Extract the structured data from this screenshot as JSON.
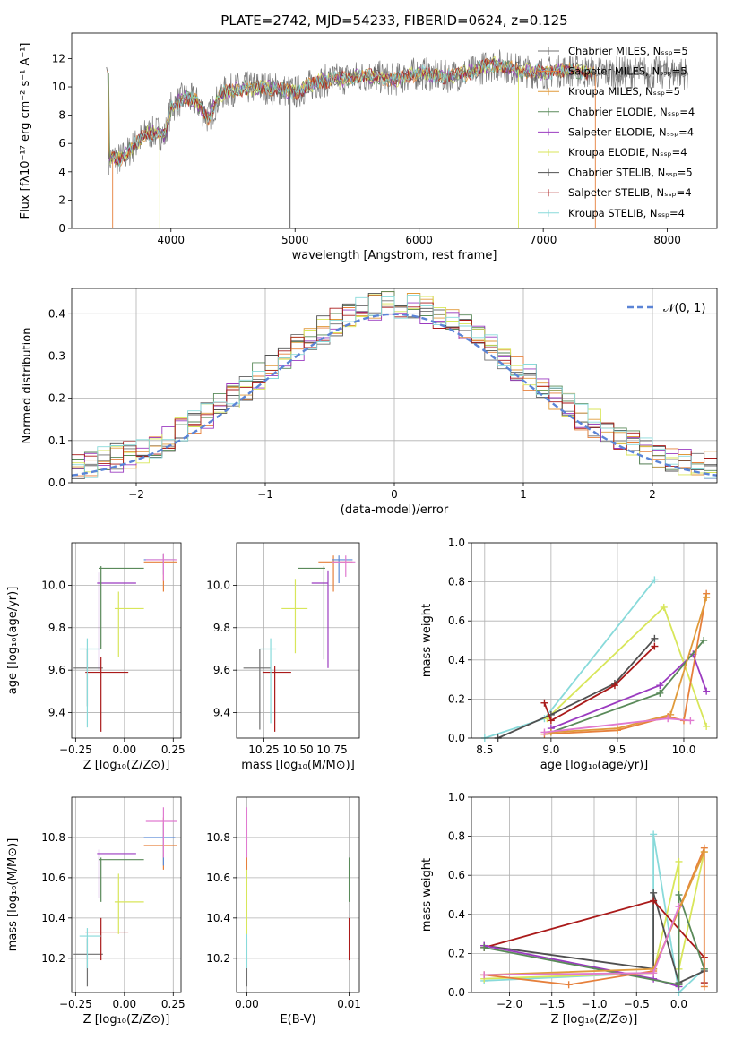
{
  "colors": {
    "c1": "#6f6f6f",
    "c2": "#e6803c",
    "c3": "#e09a3a",
    "c4": "#5a8a5a",
    "c5": "#9b3bc0",
    "c6": "#d8e65a",
    "c7": "#505050",
    "c8": "#aa1a1a",
    "c9": "#88dada",
    "norm": "#5b84d6",
    "pink": "#e07ad0",
    "blue2": "#5b8ad6"
  },
  "chart_data": [
    {
      "type": "line",
      "title": "PLATE=2742, MJD=54233, FIBERID=0624, z=0.125",
      "xlabel": "wavelength [Angstrom, rest frame]",
      "ylabel": "Flux [fλ10⁻¹⁷ erg cm⁻² s⁻¹ A⁻¹]",
      "xlim": [
        3200,
        8400
      ],
      "ylim": [
        0,
        13.8
      ],
      "xticks": [
        "4000",
        "5000",
        "6000",
        "7000",
        "8000"
      ],
      "yticks": [
        "0",
        "2",
        "4",
        "6",
        "8",
        "10",
        "12"
      ],
      "grid": false,
      "legend_position": "upper-right",
      "legend": [
        "Chabrier MILES, Nₛₛₚ=5",
        "Salpeter MILES, Nₛₛₚ=5",
        "Kroupa MILES, Nₛₛₚ=5",
        "Chabrier ELODIE, Nₛₛₚ=4",
        "Salpeter ELODIE, Nₛₛₚ=4",
        "Kroupa ELODIE, Nₛₛₚ=4",
        "Chabrier STELIB, Nₛₛₚ=5",
        "Salpeter STELIB, Nₛₛₚ=4",
        "Kroupa STELIB, Nₛₛₚ=4"
      ],
      "continuum": [
        [
          3500,
          5.0
        ],
        [
          3600,
          4.9
        ],
        [
          3700,
          5.8
        ],
        [
          3800,
          6.7
        ],
        [
          3900,
          6.8
        ],
        [
          3950,
          6.5
        ],
        [
          4000,
          8.5
        ],
        [
          4100,
          9.2
        ],
        [
          4200,
          9.0
        ],
        [
          4300,
          7.8
        ],
        [
          4400,
          9.5
        ],
        [
          4500,
          9.8
        ],
        [
          4700,
          10.0
        ],
        [
          4900,
          9.8
        ],
        [
          5000,
          9.6
        ],
        [
          5200,
          10.4
        ],
        [
          5400,
          10.6
        ],
        [
          5600,
          10.8
        ],
        [
          5800,
          10.5
        ],
        [
          6000,
          11.0
        ],
        [
          6200,
          10.7
        ],
        [
          6400,
          11.0
        ],
        [
          6600,
          11.6
        ],
        [
          6800,
          11.2
        ],
        [
          7000,
          11.0
        ],
        [
          7200,
          11.2
        ],
        [
          7400,
          11.0
        ]
      ]
    },
    {
      "type": "line",
      "xlabel": "(data-model)/error",
      "ylabel": "Normed distribution",
      "xlim": [
        -2.5,
        2.5
      ],
      "ylim": [
        0,
        0.46
      ],
      "xticks": [
        "−2",
        "−1",
        "0",
        "1",
        "2"
      ],
      "yticks": [
        "0.0",
        "0.1",
        "0.2",
        "0.3",
        "0.4"
      ],
      "grid": true,
      "legend_position": "upper-right",
      "legend": [
        "𝒩(0, 1)"
      ],
      "bin_width": 0.1
    },
    {
      "type": "scatter",
      "xlabel": "Z [log₁₀(Z/Z⊙)]",
      "ylabel": "age  [log₁₀(age/yr)]",
      "xlim": [
        -0.27,
        0.29
      ],
      "ylim": [
        9.28,
        10.2
      ],
      "xticks": [
        "−0.25",
        "0.00",
        "0.25"
      ],
      "yticks": [
        "9.4",
        "9.6",
        "9.8",
        "10.0"
      ],
      "grid": true,
      "points": [
        {
          "c": "c1",
          "x": -0.19,
          "y": 9.61,
          "xe": [
            -0.26,
            -0.11
          ],
          "ye": [
            9.43,
            9.7
          ]
        },
        {
          "c": "c8",
          "x": -0.12,
          "y": 9.59,
          "xe": [
            -0.2,
            0.02
          ],
          "ye": [
            9.31,
            9.66
          ]
        },
        {
          "c": "c9",
          "x": -0.19,
          "y": 9.7,
          "xe": [
            -0.23,
            -0.12
          ],
          "ye": [
            9.33,
            9.75
          ]
        },
        {
          "c": "c6",
          "x": -0.03,
          "y": 9.89,
          "xe": [
            -0.05,
            0.1
          ],
          "ye": [
            9.66,
            9.97
          ]
        },
        {
          "c": "c5",
          "x": -0.13,
          "y": 10.01,
          "xe": [
            -0.14,
            0.06
          ],
          "ye": [
            9.6,
            10.06
          ]
        },
        {
          "c": "c4",
          "x": -0.12,
          "y": 10.08,
          "xe": [
            -0.13,
            0.1
          ],
          "ye": [
            9.7,
            10.09
          ]
        },
        {
          "c": "c2",
          "x": 0.2,
          "y": 10.11,
          "xe": [
            0.1,
            0.27
          ],
          "ye": [
            9.97,
            10.15
          ]
        },
        {
          "c": "blue2",
          "x": 0.2,
          "y": 10.12,
          "xe": [
            0.1,
            0.26
          ],
          "ye": [
            10.05,
            10.15
          ]
        },
        {
          "c": "pink",
          "x": 0.2,
          "y": 10.12,
          "xe": [
            0.11,
            0.27
          ],
          "ye": [
            10.02,
            10.15
          ]
        }
      ]
    },
    {
      "type": "scatter",
      "xlabel": "mass [log₁₀(M/M⊙)]",
      "ylabel": "",
      "xlim": [
        10.05,
        10.95
      ],
      "ylim": [
        9.28,
        10.2
      ],
      "xticks": [
        "10.25",
        "10.50",
        "10.75"
      ],
      "yticks": [
        "9.4",
        "9.6",
        "9.8",
        "10.0"
      ],
      "grid": true,
      "points": [
        {
          "c": "c1",
          "x": 10.22,
          "y": 9.61,
          "xe": [
            10.1,
            10.3
          ],
          "ye": [
            9.32,
            9.7
          ]
        },
        {
          "c": "c8",
          "x": 10.33,
          "y": 9.59,
          "xe": [
            10.24,
            10.45
          ],
          "ye": [
            9.31,
            9.62
          ]
        },
        {
          "c": "c9",
          "x": 10.3,
          "y": 9.7,
          "xe": [
            10.22,
            10.34
          ],
          "ye": [
            9.35,
            9.75
          ]
        },
        {
          "c": "c6",
          "x": 10.48,
          "y": 9.89,
          "xe": [
            10.38,
            10.57
          ],
          "ye": [
            9.68,
            10.03
          ]
        },
        {
          "c": "c5",
          "x": 10.72,
          "y": 10.01,
          "xe": [
            10.6,
            10.72
          ],
          "ye": [
            9.61,
            10.07
          ]
        },
        {
          "c": "c4",
          "x": 10.69,
          "y": 10.08,
          "xe": [
            10.5,
            10.7
          ],
          "ye": [
            9.65,
            10.09
          ]
        },
        {
          "c": "c2",
          "x": 10.76,
          "y": 10.11,
          "xe": [
            10.65,
            10.9
          ],
          "ye": [
            9.97,
            10.14
          ]
        },
        {
          "c": "blue2",
          "x": 10.8,
          "y": 10.12,
          "xe": [
            10.75,
            10.9
          ],
          "ye": [
            10.01,
            10.14
          ]
        },
        {
          "c": "pink",
          "x": 10.85,
          "y": 10.11,
          "xe": [
            10.75,
            10.92
          ],
          "ye": [
            10.04,
            10.14
          ]
        }
      ]
    },
    {
      "type": "line",
      "xlabel": "age  [log₁₀(age/yr)]",
      "ylabel": "mass weight",
      "xlim": [
        8.4,
        10.25
      ],
      "ylim": [
        0,
        1
      ],
      "xticks": [
        "8.5",
        "9.0",
        "9.5",
        "10.0"
      ],
      "yticks": [
        "0.0",
        "0.2",
        "0.4",
        "0.6",
        "0.8",
        "1.0"
      ],
      "grid": true,
      "series": [
        {
          "c": "c9",
          "x": [
            8.5,
            8.95,
            9.78
          ],
          "y": [
            0.0,
            0.1,
            0.81
          ]
        },
        {
          "c": "c6",
          "x": 8.97,
          "y": [
            0.1,
            0.67,
            0.06
          ],
          "xs": [
            8.97,
            9.85,
            10.17
          ]
        },
        {
          "c": "c7",
          "x": [
            8.6,
            9.0,
            9.48,
            9.78
          ],
          "y": [
            0.0,
            0.12,
            0.28,
            0.51
          ]
        },
        {
          "c": "c8",
          "x": [
            8.95,
            9.0,
            9.48,
            9.78
          ],
          "y": [
            0.18,
            0.09,
            0.27,
            0.47
          ]
        },
        {
          "c": "c5",
          "x": [
            9.0,
            9.82,
            10.07,
            10.17
          ],
          "y": [
            0.05,
            0.27,
            0.43,
            0.24
          ]
        },
        {
          "c": "c4",
          "x": [
            9.0,
            9.82,
            10.15
          ],
          "y": [
            0.03,
            0.23,
            0.5
          ]
        },
        {
          "c": "c2",
          "x": [
            8.95,
            9.5,
            9.88,
            10.0,
            10.17
          ],
          "y": [
            0.02,
            0.04,
            0.11,
            0.09,
            0.74
          ]
        },
        {
          "c": "c3",
          "x": [
            9.0,
            9.5,
            9.9,
            10.17
          ],
          "y": [
            0.03,
            0.05,
            0.12,
            0.72
          ]
        },
        {
          "c": "pink",
          "x": [
            8.95,
            9.88,
            10.05
          ],
          "y": [
            0.03,
            0.1,
            0.09
          ]
        }
      ]
    },
    {
      "type": "scatter",
      "xlabel": "Z [log₁₀(Z/Z⊙)]",
      "ylabel": "mass [log₁₀(M/M⊙)]",
      "xlim": [
        -0.27,
        0.29
      ],
      "ylim": [
        10.03,
        11.0
      ],
      "xticks": [
        "−0.25",
        "0.00",
        "0.25"
      ],
      "yticks": [
        "10.2",
        "10.4",
        "10.6",
        "10.8"
      ],
      "grid": true,
      "points": [
        {
          "c": "c1",
          "x": -0.19,
          "y": 10.22,
          "xe": [
            -0.26,
            -0.11
          ],
          "ye": [
            10.06,
            10.3
          ]
        },
        {
          "c": "c8",
          "x": -0.12,
          "y": 10.33,
          "xe": [
            -0.2,
            0.02
          ],
          "ye": [
            10.19,
            10.4
          ]
        },
        {
          "c": "c9",
          "x": -0.19,
          "y": 10.31,
          "xe": [
            -0.23,
            -0.12
          ],
          "ye": [
            10.15,
            10.35
          ]
        },
        {
          "c": "c6",
          "x": -0.03,
          "y": 10.48,
          "xe": [
            -0.05,
            0.1
          ],
          "ye": [
            10.32,
            10.62
          ]
        },
        {
          "c": "c5",
          "x": -0.13,
          "y": 10.72,
          "xe": [
            -0.14,
            0.06
          ],
          "ye": [
            10.5,
            10.74
          ]
        },
        {
          "c": "c4",
          "x": -0.12,
          "y": 10.69,
          "xe": [
            -0.13,
            0.1
          ],
          "ye": [
            10.48,
            10.7
          ]
        },
        {
          "c": "c2",
          "x": 0.2,
          "y": 10.76,
          "xe": [
            0.1,
            0.27
          ],
          "ye": [
            10.64,
            10.9
          ]
        },
        {
          "c": "blue2",
          "x": 0.2,
          "y": 10.8,
          "xe": [
            0.1,
            0.26
          ],
          "ye": [
            10.66,
            10.87
          ]
        },
        {
          "c": "pink",
          "x": 0.2,
          "y": 10.88,
          "xe": [
            0.11,
            0.27
          ],
          "ye": [
            10.7,
            10.95
          ]
        }
      ]
    },
    {
      "type": "scatter",
      "xlabel": "E(B-V)",
      "ylabel": "",
      "xlim": [
        -0.001,
        0.011
      ],
      "ylim": [
        10.03,
        11.0
      ],
      "xticks": [
        "0.00",
        "0.01"
      ],
      "yticks": [
        "10.2",
        "10.4",
        "10.6",
        "10.8"
      ],
      "grid": true,
      "points": [
        {
          "c": "c1",
          "x": 0.0,
          "y": 10.22,
          "xe": [
            0.0,
            0.0
          ],
          "ye": [
            10.06,
            10.3
          ]
        },
        {
          "c": "c9",
          "x": 0.0,
          "y": 10.31,
          "xe": [
            0.0,
            0.0
          ],
          "ye": [
            10.15,
            10.35
          ]
        },
        {
          "c": "c6",
          "x": 0.0,
          "y": 10.48,
          "xe": [
            0.0,
            0.0
          ],
          "ye": [
            10.32,
            10.68
          ]
        },
        {
          "c": "c2",
          "x": 0.0,
          "y": 10.76,
          "xe": [
            0.0,
            0.0
          ],
          "ye": [
            10.64,
            10.85
          ]
        },
        {
          "c": "pink",
          "x": 0.0,
          "y": 10.88,
          "xe": [
            0.0,
            0.0
          ],
          "ye": [
            10.7,
            10.95
          ]
        },
        {
          "c": "c8",
          "x": 0.01,
          "y": 10.33,
          "xe": [
            0.01,
            0.01
          ],
          "ye": [
            10.19,
            10.4
          ]
        },
        {
          "c": "c4",
          "x": 0.01,
          "y": 10.69,
          "xe": [
            0.01,
            0.01
          ],
          "ye": [
            10.48,
            10.7
          ]
        }
      ]
    },
    {
      "type": "line",
      "xlabel": "Z [log₁₀(Z/Z⊙)]",
      "ylabel": "mass weight",
      "xlim": [
        -2.45,
        0.45
      ],
      "ylim": [
        0,
        1
      ],
      "xticks": [
        "−2.0",
        "−1.5",
        "−1.0",
        "−0.5",
        "0.0"
      ],
      "yticks": [
        "0.0",
        "0.2",
        "0.4",
        "0.6",
        "0.8",
        "1.0"
      ],
      "grid": true,
      "series": [
        {
          "c": "c9",
          "x": [
            -2.3,
            -0.3,
            -0.3,
            0.0,
            0.3
          ],
          "y": [
            0.06,
            0.1,
            0.81,
            0.0,
            0.12
          ]
        },
        {
          "c": "c6",
          "x": [
            -2.3,
            -0.3,
            0.0,
            0.0,
            0.3
          ],
          "y": [
            0.07,
            0.1,
            0.67,
            0.12,
            0.72
          ]
        },
        {
          "c": "c7",
          "x": [
            -2.3,
            -0.3,
            -0.3,
            0.0,
            0.3
          ],
          "y": [
            0.24,
            0.12,
            0.51,
            0.05,
            0.11
          ]
        },
        {
          "c": "c8",
          "x": [
            -2.3,
            -0.3,
            0.3,
            0.3
          ],
          "y": [
            0.23,
            0.47,
            0.18,
            0.05
          ]
        },
        {
          "c": "c5",
          "x": [
            -2.3,
            -0.3,
            0.0
          ],
          "y": [
            0.24,
            0.07,
            0.03
          ]
        },
        {
          "c": "c4",
          "x": [
            -2.3,
            0.0,
            0.0,
            0.3
          ],
          "y": [
            0.23,
            0.04,
            0.5,
            0.12
          ]
        },
        {
          "c": "c2",
          "x": [
            -2.3,
            -1.3,
            -0.3,
            0.3,
            0.3
          ],
          "y": [
            0.09,
            0.04,
            0.11,
            0.74,
            0.03
          ]
        },
        {
          "c": "c3",
          "x": [
            -2.3,
            -0.3,
            0.3
          ],
          "y": [
            0.09,
            0.12,
            0.72
          ]
        },
        {
          "c": "pink",
          "x": [
            -2.3,
            -0.3,
            0.0
          ],
          "y": [
            0.09,
            0.1,
            0.44
          ]
        }
      ]
    }
  ]
}
